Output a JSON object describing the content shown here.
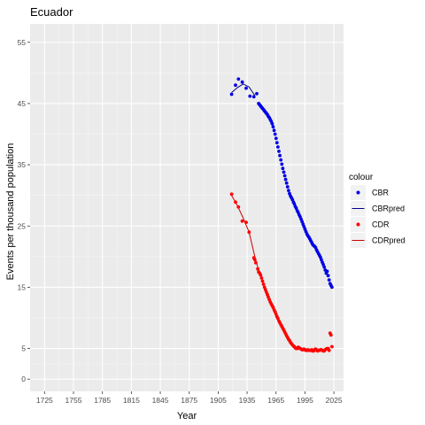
{
  "chart_data": {
    "type": "scatter",
    "title": "Ecuador",
    "xlabel": "Year",
    "ylabel": "Events per thousand population",
    "xlim": [
      1710,
      2035
    ],
    "ylim": [
      -2,
      58
    ],
    "x_ticks": [
      1725,
      1755,
      1785,
      1815,
      1845,
      1875,
      1905,
      1935,
      1965,
      1995,
      2025
    ],
    "y_ticks": [
      0,
      5,
      15,
      25,
      35,
      45,
      55
    ],
    "grid": true,
    "legend": {
      "title": "colour",
      "position": "right",
      "entries": [
        {
          "label": "CBR",
          "kind": "point",
          "color": "#0000e6"
        },
        {
          "label": "CBRpred",
          "kind": "line",
          "color": "#00008b"
        },
        {
          "label": "CDR",
          "kind": "point",
          "color": "#ff0000"
        },
        {
          "label": "CDRpred",
          "kind": "line",
          "color": "#cc0000"
        }
      ]
    },
    "series": [
      {
        "name": "CBR",
        "kind": "point",
        "color": "#0000e6",
        "x": [
          1919,
          1923,
          1926,
          1930,
          1934,
          1938,
          1942,
          1945,
          1947,
          1948,
          1949,
          1950,
          1951,
          1952,
          1953,
          1954,
          1955,
          1956,
          1957,
          1958,
          1959,
          1960,
          1961,
          1962,
          1963,
          1964,
          1965,
          1966,
          1967,
          1968,
          1969,
          1970,
          1971,
          1972,
          1973,
          1974,
          1975,
          1976,
          1977,
          1978,
          1979,
          1980,
          1981,
          1982,
          1983,
          1984,
          1985,
          1986,
          1987,
          1988,
          1989,
          1990,
          1991,
          1992,
          1993,
          1994,
          1995,
          1996,
          1997,
          1998,
          1999,
          2000,
          2001,
          2002,
          2003,
          2004,
          2005,
          2006,
          2007,
          2008,
          2009,
          2010,
          2011,
          2012,
          2013,
          2014,
          2015,
          2016,
          2017,
          2018,
          2019,
          2020,
          2021,
          2022,
          2023
        ],
        "y": [
          46.5,
          48.0,
          49.0,
          48.5,
          47.5,
          46.2,
          46.1,
          46.6,
          45.0,
          44.8,
          44.6,
          44.4,
          44.2,
          44.0,
          43.8,
          43.6,
          43.4,
          43.2,
          42.9,
          42.7,
          42.4,
          42.1,
          41.7,
          41.2,
          40.6,
          40.0,
          39.3,
          38.6,
          37.9,
          37.2,
          36.5,
          35.8,
          35.1,
          34.4,
          33.8,
          33.2,
          32.6,
          32.0,
          31.4,
          30.8,
          30.3,
          29.9,
          29.6,
          29.3,
          28.9,
          28.6,
          28.2,
          27.9,
          27.5,
          27.2,
          26.8,
          26.5,
          26.1,
          25.7,
          25.3,
          24.9,
          24.5,
          24.1,
          23.7,
          23.4,
          23.2,
          22.9,
          22.6,
          22.3,
          22.0,
          21.8,
          21.7,
          21.5,
          21.1,
          20.8,
          20.5,
          20.2,
          19.9,
          19.5,
          19.1,
          18.7,
          18.3,
          17.8,
          17.3,
          17.6,
          16.9,
          16.2,
          15.6,
          15.3,
          15.0
        ]
      },
      {
        "name": "CBRpred",
        "kind": "line",
        "color": "#00008b",
        "x": [
          1919,
          1925,
          1931,
          1937,
          1943
        ],
        "y": [
          46.8,
          47.6,
          48.2,
          47.7,
          46.3
        ]
      },
      {
        "name": "CDR",
        "kind": "point",
        "color": "#ff0000",
        "x": [
          1919,
          1923,
          1926,
          1930,
          1934,
          1937,
          1942,
          1943,
          1944,
          1946,
          1947,
          1948,
          1949,
          1950,
          1951,
          1952,
          1953,
          1954,
          1955,
          1956,
          1957,
          1958,
          1959,
          1960,
          1961,
          1962,
          1963,
          1964,
          1965,
          1966,
          1967,
          1968,
          1969,
          1970,
          1971,
          1972,
          1973,
          1974,
          1975,
          1976,
          1977,
          1978,
          1979,
          1980,
          1981,
          1982,
          1983,
          1984,
          1985,
          1986,
          1987,
          1988,
          1989,
          1990,
          1991,
          1992,
          1993,
          1994,
          1995,
          1996,
          1997,
          1998,
          1999,
          2000,
          2001,
          2002,
          2003,
          2004,
          2005,
          2006,
          2007,
          2008,
          2009,
          2010,
          2011,
          2012,
          2013,
          2014,
          2015,
          2016,
          2017,
          2018,
          2019,
          2020,
          2021,
          2022,
          2023
        ],
        "y": [
          30.2,
          28.9,
          28.1,
          25.8,
          25.6,
          24.0,
          19.8,
          19.5,
          19.0,
          18.0,
          17.5,
          17.3,
          17.0,
          16.5,
          16.0,
          15.5,
          15.0,
          14.6,
          14.2,
          13.8,
          13.4,
          13.0,
          12.6,
          12.3,
          12.0,
          11.7,
          11.3,
          11.0,
          10.6,
          10.2,
          9.9,
          9.5,
          9.2,
          8.9,
          8.6,
          8.3,
          8.0,
          7.7,
          7.4,
          7.1,
          6.8,
          6.5,
          6.3,
          6.0,
          5.8,
          5.6,
          5.4,
          5.3,
          5.1,
          5.0,
          5.0,
          5.2,
          5.1,
          5.0,
          4.9,
          4.8,
          4.8,
          4.9,
          4.8,
          4.7,
          4.7,
          4.8,
          4.7,
          4.7,
          4.7,
          4.8,
          4.6,
          4.6,
          4.8,
          4.9,
          4.8,
          4.6,
          4.7,
          4.7,
          4.8,
          4.8,
          4.7,
          4.6,
          4.6,
          4.8,
          4.9,
          5.0,
          5.0,
          4.7,
          7.5,
          7.2,
          5.3
        ]
      },
      {
        "name": "CDRpred",
        "kind": "line",
        "color": "#cc0000",
        "x": [
          1919,
          1925,
          1931,
          1937,
          1943,
          1948
        ],
        "y": [
          30.0,
          28.3,
          26.3,
          24.0,
          20.0,
          17.2
        ]
      }
    ]
  }
}
